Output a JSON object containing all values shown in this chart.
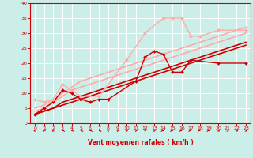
{
  "bg_color": "#cceee8",
  "grid_color": "#ffffff",
  "xlabel": "Vent moyen/en rafales ( km/h )",
  "xlabel_color": "#cc0000",
  "tick_color": "#cc0000",
  "xlim": [
    -0.5,
    23.5
  ],
  "ylim": [
    0,
    40
  ],
  "xticks": [
    0,
    1,
    2,
    3,
    4,
    5,
    6,
    7,
    8,
    9,
    10,
    11,
    12,
    13,
    14,
    15,
    16,
    17,
    18,
    19,
    20,
    21,
    22,
    23
  ],
  "yticks": [
    0,
    5,
    10,
    15,
    20,
    25,
    30,
    35,
    40
  ],
  "series": [
    {
      "x": [
        0,
        1,
        2,
        3,
        4,
        5,
        6,
        7,
        8,
        11,
        12,
        13,
        14,
        15,
        16,
        17,
        20,
        23
      ],
      "y": [
        3,
        5,
        7,
        11,
        10,
        8,
        7,
        8,
        8,
        14,
        22,
        24,
        23,
        17,
        17,
        21,
        20,
        20
      ],
      "color": "#cc0000",
      "lw": 1.0,
      "marker": "D",
      "ms": 2.0,
      "segments": [
        [
          0,
          8
        ],
        [
          11,
          17
        ],
        [
          20,
          20
        ],
        [
          23,
          23
        ]
      ]
    },
    {
      "x": [
        0,
        1,
        2,
        3,
        4,
        5,
        7,
        10,
        12,
        14,
        15,
        16,
        17,
        18,
        20,
        23
      ],
      "y": [
        8,
        7,
        8,
        13,
        11,
        9,
        9,
        21,
        30,
        35,
        35,
        35,
        29,
        29,
        31,
        31
      ],
      "color": "#ffaaaa",
      "lw": 1.0,
      "marker": "D",
      "ms": 2.0,
      "segments": [
        [
          0,
          5
        ],
        [
          7,
          7
        ],
        [
          10,
          10
        ],
        [
          12,
          12
        ],
        [
          14,
          18
        ],
        [
          20,
          20
        ],
        [
          23,
          23
        ]
      ]
    },
    {
      "x": [
        0,
        1,
        2,
        3,
        4,
        5,
        6,
        7,
        8,
        9,
        10,
        11,
        12,
        13,
        14,
        15,
        16,
        17,
        18,
        19,
        20,
        21,
        22,
        23
      ],
      "y": [
        3,
        4,
        5,
        6,
        7,
        8,
        9,
        10,
        11,
        12,
        13,
        14,
        15,
        16,
        17,
        18,
        19,
        20,
        21,
        22,
        23,
        24,
        25,
        26
      ],
      "color": "#cc0000",
      "lw": 1.2,
      "marker": null,
      "ms": 0,
      "segments": [
        [
          0,
          23
        ]
      ]
    },
    {
      "x": [
        0,
        1,
        2,
        3,
        4,
        5,
        6,
        7,
        8,
        9,
        10,
        11,
        12,
        13,
        14,
        15,
        16,
        17,
        18,
        19,
        20,
        21,
        22,
        23
      ],
      "y": [
        3,
        4,
        5,
        7,
        8,
        9,
        10,
        11,
        12,
        13,
        14,
        15,
        16,
        17,
        18,
        19,
        20,
        21,
        22,
        23,
        24,
        25,
        26,
        27
      ],
      "color": "#cc0000",
      "lw": 1.2,
      "marker": null,
      "ms": 0,
      "segments": [
        [
          0,
          23
        ]
      ]
    },
    {
      "x": [
        0,
        1,
        2,
        3,
        4,
        5,
        6,
        7,
        8,
        9,
        10,
        11,
        12,
        13,
        14,
        15,
        16,
        17,
        18,
        19,
        20,
        21,
        22,
        23
      ],
      "y": [
        4,
        5,
        7,
        9,
        11,
        12,
        13,
        14,
        15,
        16,
        17,
        18,
        19,
        20,
        21,
        22,
        23,
        24,
        25,
        26,
        27,
        28,
        29,
        30
      ],
      "color": "#ffaaaa",
      "lw": 1.2,
      "marker": null,
      "ms": 0,
      "segments": [
        [
          0,
          23
        ]
      ]
    },
    {
      "x": [
        0,
        1,
        2,
        3,
        4,
        5,
        6,
        7,
        8,
        9,
        10,
        11,
        12,
        13,
        14,
        15,
        16,
        17,
        18,
        19,
        20,
        21,
        22,
        23
      ],
      "y": [
        5,
        6,
        8,
        10,
        12,
        14,
        15,
        16,
        17,
        18,
        19,
        20,
        21,
        22,
        23,
        24,
        25,
        26,
        27,
        28,
        29,
        30,
        31,
        32
      ],
      "color": "#ffaaaa",
      "lw": 1.2,
      "marker": null,
      "ms": 0,
      "segments": [
        [
          0,
          23
        ]
      ]
    }
  ],
  "wind_directions": [
    225,
    210,
    225,
    270,
    270,
    270,
    270,
    270,
    315,
    45,
    45,
    45,
    45,
    45,
    90,
    90,
    90,
    90,
    90,
    90,
    135,
    135,
    135,
    135
  ]
}
